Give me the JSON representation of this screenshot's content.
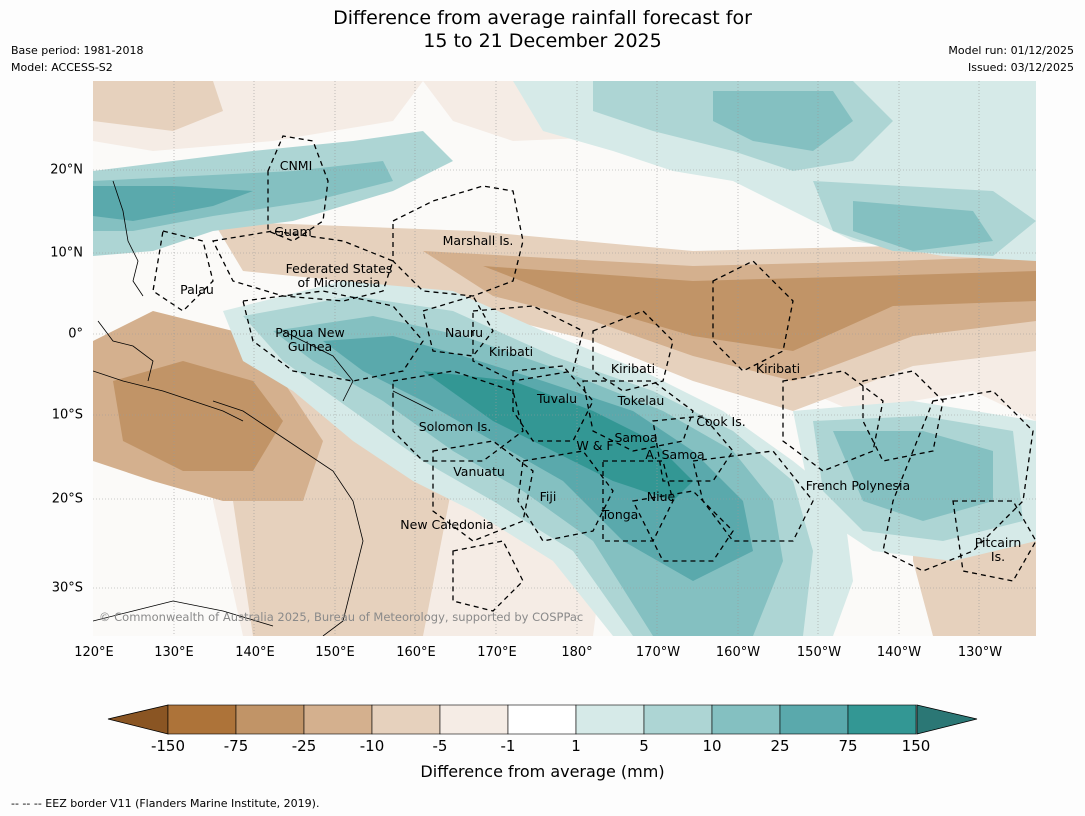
{
  "header": {
    "title_line1": "Difference from average rainfall forecast for",
    "title_line2": "15 to 21 December 2025",
    "base_period": "Base period: 1981-2018",
    "model": "Model: ACCESS-S2",
    "model_run": "Model run: 01/12/2025",
    "issued": "Issued: 03/12/2025"
  },
  "map": {
    "longitude_ticks": [
      "120°E",
      "130°E",
      "140°E",
      "150°E",
      "160°E",
      "170°E",
      "180°",
      "170°W",
      "160°W",
      "150°W",
      "140°W",
      "130°W"
    ],
    "latitude_ticks": [
      "20°N",
      "10°N",
      "0°",
      "10°S",
      "20°S",
      "30°S"
    ],
    "labels": {
      "cnmi": "CNMI",
      "guam": "Guam",
      "marshall": "Marshall Is.",
      "fsm": "Federated States\nof Micronesia",
      "palau": "Palau",
      "png": "Papua New\nGuinea",
      "nauru": "Nauru",
      "kiribati_w": "Kiribati",
      "kiribati_c": "Kiribati",
      "kiribati_e": "Kiribati",
      "tuvalu": "Tuvalu",
      "tokelau": "Tokelau",
      "solomon": "Solomon Is.",
      "wf": "W & F",
      "samoa": "Samoa",
      "asamoa": "A. Samoa",
      "cook": "Cook Is.",
      "vanuatu": "Vanuatu",
      "fiji": "Fiji",
      "niue": "Niue",
      "tonga": "Tonga",
      "french_polynesia": "French Polynesia",
      "new_caledonia": "New Caledonia",
      "pitcairn": "Pitcairn\nIs."
    },
    "copyright": "© Commonwealth of Australia 2025, Bureau of Meteorology, supported by COSPPac"
  },
  "colorbar": {
    "ticks": [
      "-150",
      "-75",
      "-25",
      "-10",
      "-5",
      "-1",
      "1",
      "5",
      "10",
      "25",
      "75",
      "150"
    ],
    "colors": [
      "#ad7339",
      "#c19467",
      "#d4b08e",
      "#e6d1bd",
      "#f5ece5",
      "#ffffff",
      "#d6eae8",
      "#add5d4",
      "#84c0c1",
      "#5aa9ac",
      "#339794"
    ],
    "extend_low": "#8a5523",
    "extend_high": "#2b7775",
    "title": "Difference from average (mm)"
  },
  "footnote": "--  --  -- EEZ border V11 (Flanders Marine Institute, 2019)."
}
